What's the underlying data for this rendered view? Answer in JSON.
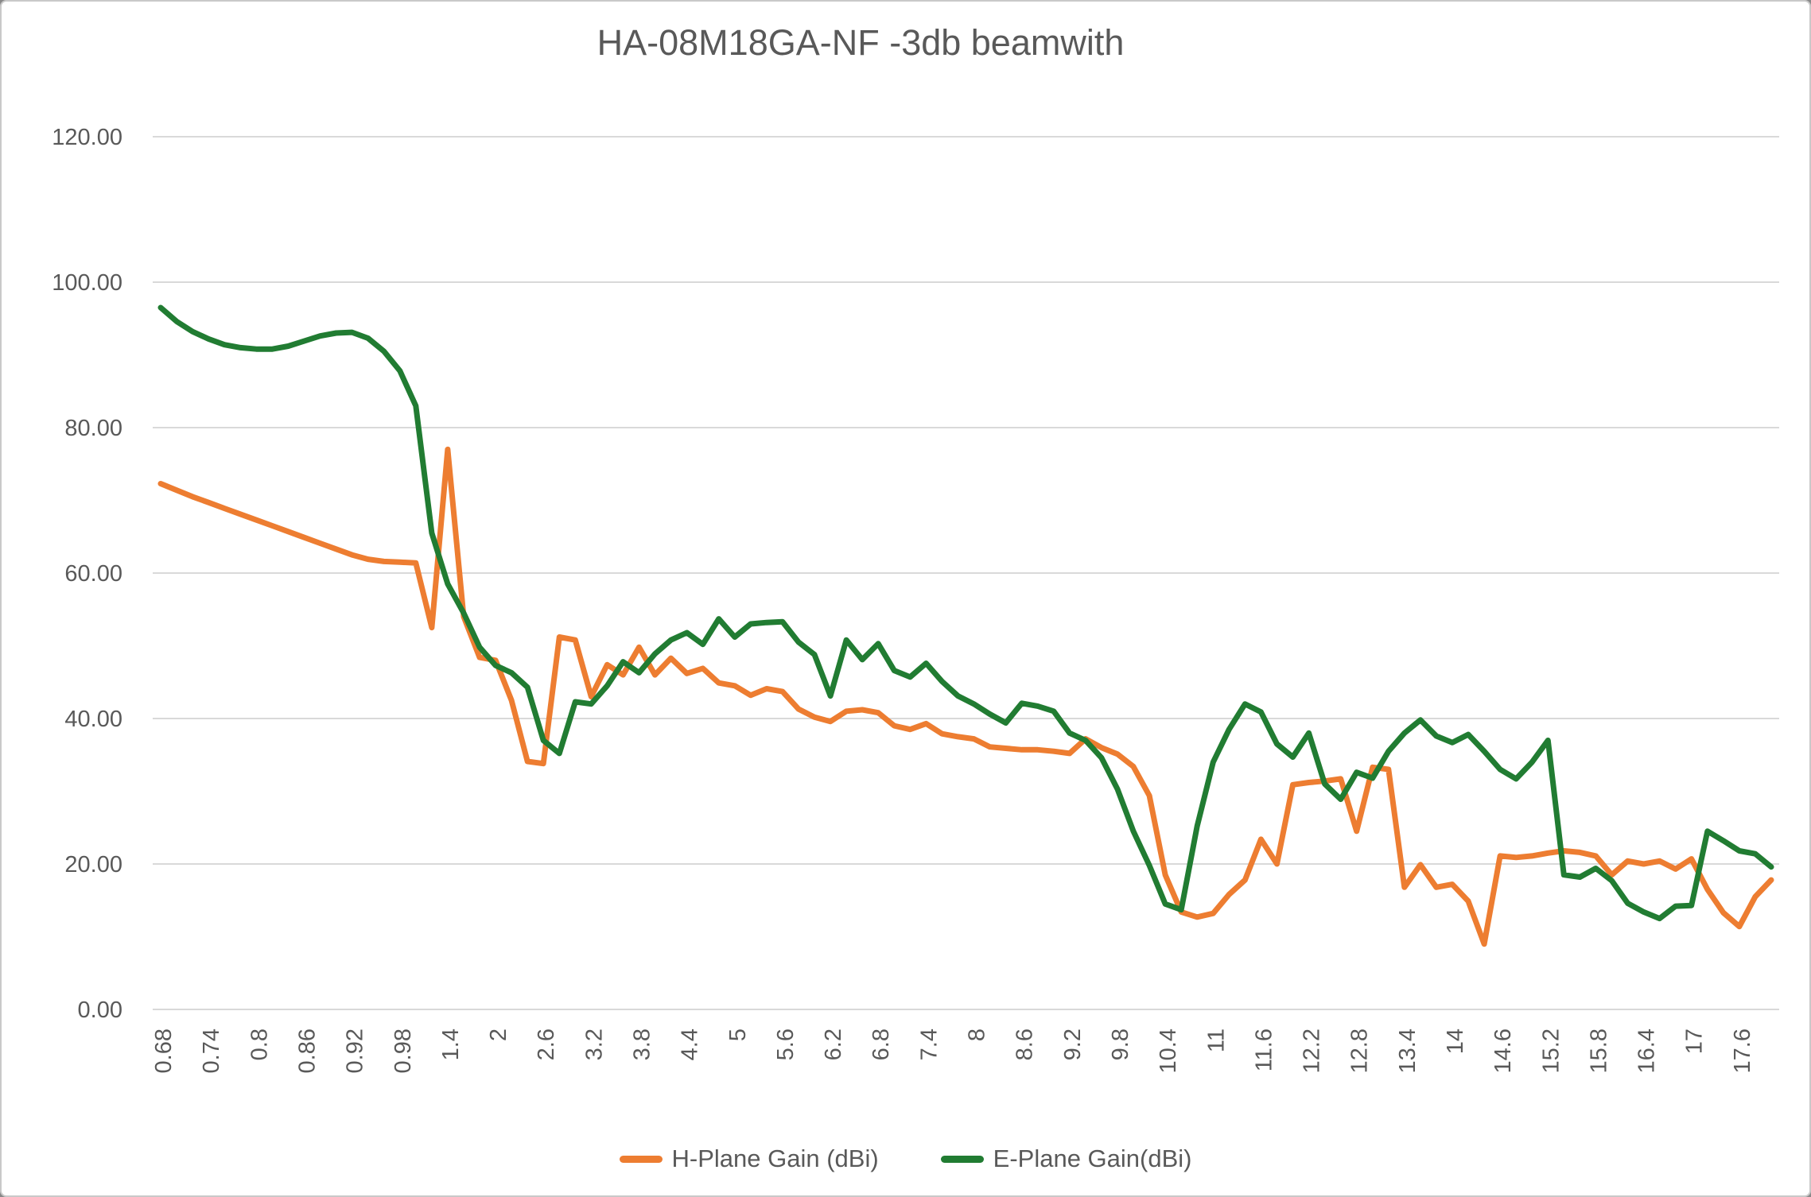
{
  "title": "HA-08M18GA-NF -3db beamwith",
  "axes": {
    "y_tick_labels": [
      "0.00",
      "20.00",
      "40.00",
      "60.00",
      "80.00",
      "100.00",
      "120.00"
    ],
    "x_tick_labels": [
      "0.68",
      "0.74",
      "0.8",
      "0.86",
      "0.92",
      "0.98",
      "1.4",
      "2",
      "2.6",
      "3.2",
      "3.8",
      "4.4",
      "5",
      "5.6",
      "6.2",
      "6.8",
      "7.4",
      "8",
      "8.6",
      "9.2",
      "9.8",
      "10.4",
      "11",
      "11.6",
      "12.2",
      "12.8",
      "13.4",
      "14",
      "14.6",
      "15.2",
      "15.8",
      "16.4",
      "17",
      "17.6"
    ]
  },
  "colors": {
    "h_plane": "#ED7D31",
    "e_plane": "#217C32",
    "text": "#595959",
    "gridline": "#D9D9D9",
    "background": "#FFFFFF"
  },
  "chart_data": {
    "type": "line",
    "title": "HA-08M18GA-NF -3db beamwith",
    "xlabel": "",
    "ylabel": "",
    "ylim": [
      0,
      120
    ],
    "y_ticks": [
      0,
      20,
      40,
      60,
      80,
      100,
      120
    ],
    "grid": "horizontal",
    "legend_position": "bottom",
    "x_tick_every": 3,
    "x": [
      0.68,
      0.7,
      0.72,
      0.74,
      0.76,
      0.78,
      0.8,
      0.82,
      0.84,
      0.86,
      0.88,
      0.9,
      0.92,
      0.94,
      0.96,
      0.98,
      1,
      1.2,
      1.4,
      1.6,
      1.8,
      2,
      2.2,
      2.4,
      2.6,
      2.8,
      3,
      3.2,
      3.4,
      3.6,
      3.8,
      4,
      4.2,
      4.4,
      4.6,
      4.8,
      5,
      5.2,
      5.4,
      5.6,
      5.8,
      6,
      6.2,
      6.4,
      6.6,
      6.8,
      7,
      7.2,
      7.4,
      7.6,
      7.8,
      8,
      8.2,
      8.4,
      8.6,
      8.8,
      9,
      9.2,
      9.4,
      9.6,
      9.8,
      10,
      10.2,
      10.4,
      10.6,
      10.8,
      11,
      11.2,
      11.4,
      11.6,
      11.8,
      12,
      12.2,
      12.4,
      12.6,
      12.8,
      13,
      13.2,
      13.4,
      13.6,
      13.8,
      14,
      14.2,
      14.4,
      14.6,
      14.8,
      15,
      15.2,
      15.4,
      15.6,
      15.8,
      16,
      16.2,
      16.4,
      16.6,
      16.8,
      17,
      17.2,
      17.4,
      17.6,
      17.8,
      18
    ],
    "series": [
      {
        "name": "H-Plane Gain (dBi)",
        "color": "#ED7D31",
        "values": [
          72.3,
          71.4,
          70.5,
          69.7,
          68.9,
          68.1,
          67.3,
          66.5,
          65.7,
          64.9,
          64.1,
          63.3,
          62.5,
          61.9,
          61.6,
          61.5,
          61.4,
          52.5,
          77,
          54,
          48.4,
          48,
          42.5,
          34.1,
          33.8,
          51.2,
          50.8,
          43,
          47.4,
          46,
          49.8,
          46,
          48.3,
          46.2,
          46.9,
          44.9,
          44.5,
          43.2,
          44.1,
          43.7,
          41.3,
          40.2,
          39.6,
          41,
          41.2,
          40.8,
          39,
          38.5,
          39.3,
          37.9,
          37.5,
          37.2,
          36.1,
          35.9,
          35.7,
          35.7,
          35.5,
          35.2,
          37.2,
          36,
          35.1,
          33.4,
          29.4,
          18.5,
          13.4,
          12.7,
          13.2,
          15.8,
          17.8,
          23.4,
          20,
          30.9,
          31.2,
          31.4,
          31.7,
          24.5,
          33.3,
          33,
          16.8,
          19.9,
          16.8,
          17.2,
          14.9,
          9,
          21.1,
          20.9,
          21.1,
          21.5,
          21.8,
          21.6,
          21.1,
          18.5,
          20.4,
          20,
          20.4,
          19.3,
          20.7,
          16.5,
          13.3,
          11.4,
          15.5,
          17.8
        ]
      },
      {
        "name": "E-Plane Gain(dBi)",
        "color": "#217C32",
        "values": [
          96.5,
          94.6,
          93.2,
          92.2,
          91.4,
          91,
          90.8,
          90.8,
          91.2,
          91.9,
          92.6,
          93,
          93.1,
          92.3,
          90.5,
          87.8,
          83,
          65.5,
          58.5,
          54.5,
          49.8,
          47.3,
          46.3,
          44.3,
          37,
          35.2,
          42.3,
          42,
          44.5,
          47.8,
          46.3,
          48.9,
          50.8,
          51.8,
          50.2,
          53.7,
          51.2,
          53,
          53.2,
          53.3,
          50.5,
          48.8,
          43.1,
          50.8,
          48.1,
          50.3,
          46.6,
          45.7,
          47.6,
          45.1,
          43.1,
          42,
          40.6,
          39.4,
          42.1,
          41.7,
          41,
          38,
          37,
          34.6,
          30.3,
          24.5,
          19.8,
          14.5,
          13.7,
          25.2,
          34,
          38.5,
          42,
          40.9,
          36.5,
          34.7,
          38,
          31,
          28.9,
          32.6,
          31.8,
          35.5,
          38,
          39.8,
          37.6,
          36.7,
          37.8,
          35.5,
          33,
          31.7,
          34,
          37,
          18.5,
          18.2,
          19.4,
          17.7,
          14.6,
          13.4,
          12.5,
          14.2,
          14.3,
          24.5,
          23.2,
          21.8,
          21.4,
          19.6
        ]
      }
    ]
  }
}
